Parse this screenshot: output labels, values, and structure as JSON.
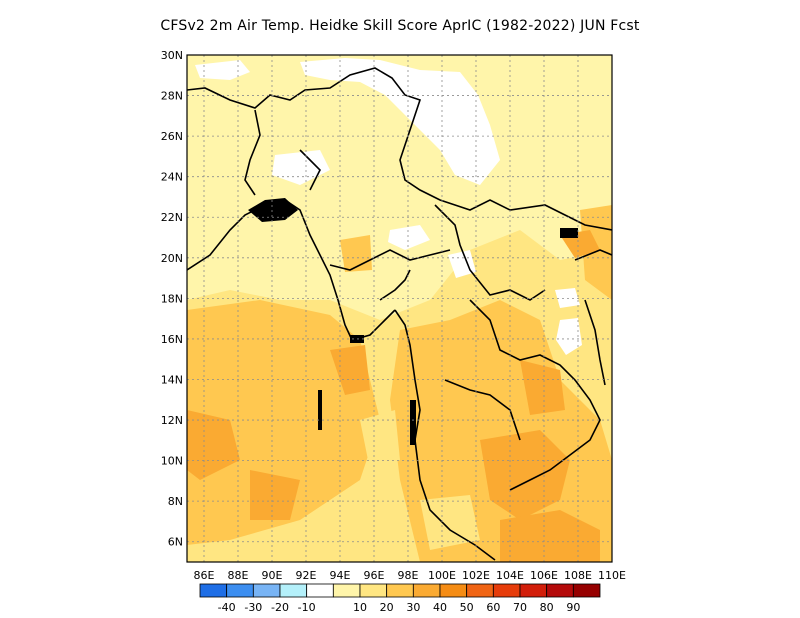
{
  "title": "CFSv2  2m Air Temp. Heidke Skill Score AprIC (1982-2022) JUN Fcst",
  "map": {
    "lat_labels": [
      "30N",
      "28N",
      "26N",
      "24N",
      "22N",
      "20N",
      "18N",
      "16N",
      "14N",
      "12N",
      "10N",
      "8N",
      "6N"
    ],
    "lat_values": [
      30,
      28,
      26,
      24,
      22,
      20,
      18,
      16,
      14,
      12,
      10,
      8,
      6
    ],
    "lon_labels": [
      "86E",
      "88E",
      "90E",
      "92E",
      "94E",
      "96E",
      "98E",
      "100E",
      "102E",
      "104E",
      "106E",
      "108E",
      "110E"
    ],
    "lon_values": [
      86,
      88,
      90,
      92,
      94,
      96,
      98,
      100,
      102,
      104,
      106,
      108,
      110
    ],
    "lon_range": [
      85,
      110
    ],
    "lat_range": [
      5,
      30
    ],
    "grid": true
  },
  "colorbar": {
    "colors": [
      "#1e6ee6",
      "#3c8ef0",
      "#78b4f5",
      "#b4f0fa",
      "#ffffff",
      "#fff5aa",
      "#ffe682",
      "#ffc850",
      "#faaa32",
      "#f58c14",
      "#f06414",
      "#e63c0a",
      "#d21e0a",
      "#b40a0a",
      "#960000"
    ],
    "labels": [
      "-40",
      "-30",
      "-20",
      "-10",
      "10",
      "20",
      "30",
      "40",
      "50",
      "60",
      "70",
      "80",
      "90"
    ]
  }
}
